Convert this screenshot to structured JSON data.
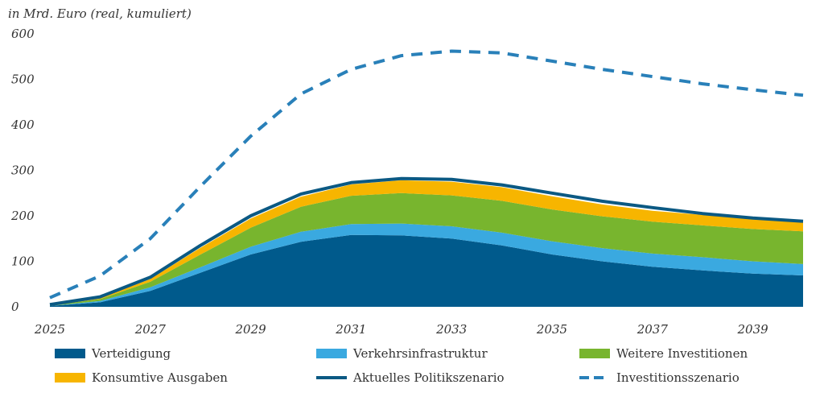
{
  "chart_data": {
    "type": "area",
    "unit_label": "in Mrd. Euro (real, kumuliert)",
    "x": [
      2025,
      2026,
      2027,
      2028,
      2029,
      2030,
      2031,
      2032,
      2033,
      2034,
      2035,
      2036,
      2037,
      2038,
      2039,
      2040
    ],
    "x_tick_labels": [
      "2025",
      "2027",
      "2029",
      "2031",
      "2033",
      "2035",
      "2037",
      "2039"
    ],
    "ylim": [
      0,
      600
    ],
    "y_ticks": [
      "0",
      "100",
      "200",
      "300",
      "400",
      "500",
      "600"
    ],
    "stacked_series": [
      {
        "name": "Verteidigung",
        "color": "#005a8c",
        "values": [
          2,
          10,
          35,
          75,
          115,
          143,
          158,
          157,
          150,
          135,
          115,
          100,
          88,
          80,
          73,
          69
        ]
      },
      {
        "name": "Verkehrsinfrastruktur",
        "color": "#3aa9e0",
        "values": [
          0,
          3,
          8,
          12,
          17,
          22,
          24,
          26,
          27,
          28,
          29,
          29,
          29,
          29,
          27,
          25
        ]
      },
      {
        "name": "Weitere Investitionen",
        "color": "#78b52e",
        "values": [
          1,
          4,
          12,
          28,
          42,
          55,
          62,
          67,
          68,
          70,
          70,
          70,
          70,
          70,
          71,
          72
        ]
      },
      {
        "name": "Konsumtive Ausgaben",
        "color": "#f7b500",
        "values": [
          0,
          2,
          6,
          15,
          20,
          22,
          25,
          28,
          30,
          30,
          29,
          26,
          24,
          23,
          22,
          21
        ]
      }
    ],
    "line_series": [
      {
        "name": "Aktuelles Politikszenario",
        "color": "#0b5983",
        "style": "solid",
        "values": [
          5,
          22,
          65,
          135,
          200,
          248,
          273,
          282,
          280,
          268,
          250,
          232,
          218,
          205,
          195,
          188
        ]
      },
      {
        "name": "Investitionsszenario",
        "color": "#2980b9",
        "style": "dashed",
        "values": [
          20,
          68,
          150,
          265,
          375,
          468,
          522,
          552,
          562,
          558,
          540,
          522,
          506,
          490,
          477,
          465
        ]
      }
    ]
  }
}
